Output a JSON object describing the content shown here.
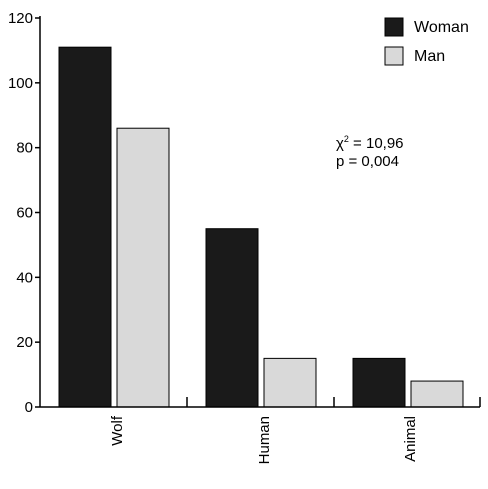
{
  "chart_data": {
    "type": "bar",
    "categories": [
      "Wolf",
      "Human",
      "Animal"
    ],
    "series": [
      {
        "name": "Woman",
        "values": [
          111,
          55,
          15
        ],
        "color": "#1a1a1a"
      },
      {
        "name": "Man",
        "values": [
          86,
          15,
          8
        ],
        "color": "#d9d9d9"
      }
    ],
    "ylim": [
      0,
      120
    ],
    "yticks": [
      0,
      20,
      40,
      60,
      80,
      100,
      120
    ],
    "legend_position": "top-right",
    "grid": false,
    "annotation": {
      "chi_label": "χ",
      "chi_sup": "2",
      "chi_value": " = 10,96",
      "p_line": "p = 0,004"
    }
  }
}
